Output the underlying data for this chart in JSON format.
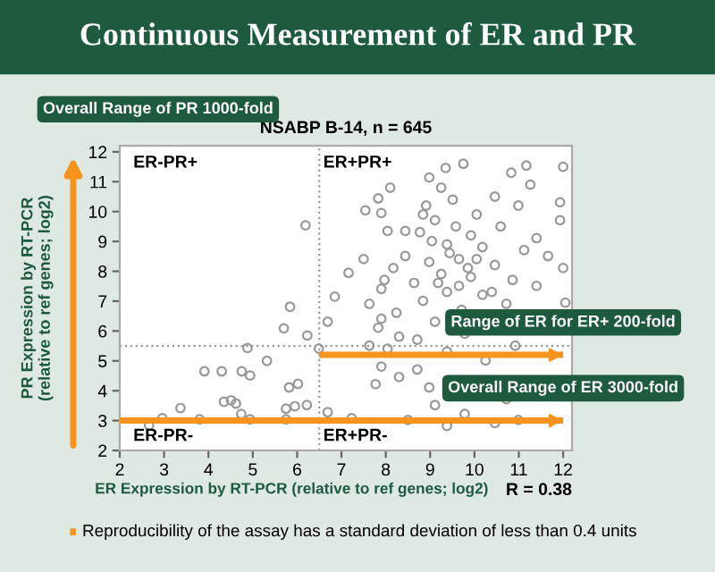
{
  "chart_data": {
    "type": "scatter",
    "title": "Continuous Measurement of ER and PR",
    "subtitle": "NSABP B-14, n = 645",
    "xlabel": "ER Expression by RT-PCR (relative to ref genes; log2)",
    "ylabel": "PR Expression by RT-PCR\n(relative to ref genes; log2)",
    "xlim": [
      2,
      12.2
    ],
    "ylim": [
      2,
      12.2
    ],
    "xticks": [
      2,
      3,
      4,
      5,
      6,
      7,
      8,
      9,
      10,
      11,
      12
    ],
    "yticks": [
      2,
      3,
      4,
      5,
      6,
      7,
      8,
      9,
      10,
      11,
      12
    ],
    "grid": false,
    "legend": false,
    "marker": "circle",
    "ref_lines": [
      {
        "axis": "x",
        "value": 6.5,
        "color": "#999999",
        "line_style": "dotted"
      },
      {
        "axis": "y",
        "value": 5.5,
        "color": "#999999",
        "line_style": "dotted"
      },
      {
        "axis": "y",
        "value": 5.2,
        "color": "#f7941d",
        "label": "Range of ER for ER+ 200-fold"
      },
      {
        "axis": "y",
        "value": 3,
        "color": "#f7941d",
        "label": "Overall Range of ER 3000-fold"
      }
    ],
    "annotations": [
      "Overall Range of PR 1000-fold",
      "ER-PR+",
      "ER+PR+",
      "ER-PR-",
      "ER+PR-",
      "R = 0.38",
      "Reproducibility of the assay has a standard deviation of less than 0.4 units"
    ],
    "series": [
      {
        "color": "#999999",
        "x": [
          6.19,
          5.84,
          5.7,
          6.23,
          4.88,
          5.32,
          3.91,
          4.3,
          4.75,
          4.94,
          5.82,
          6.02,
          4.51,
          4.35,
          4.62,
          3.37,
          4.74,
          5.75,
          5.95,
          6.22,
          2.96,
          2.66,
          3.8,
          4.94,
          5.75,
          6.49,
          6.69,
          6.85,
          8.1,
          7.83,
          7.54,
          7.9,
          8.04,
          8.44,
          7.16,
          7.5,
          7.97,
          7.63,
          7.9,
          8.3,
          7.9,
          7.77,
          8.3,
          7.23,
          6.69,
          7.63,
          8.04,
          9.35,
          9.75,
          11.17,
          12.0,
          8.98,
          10.83,
          11.26,
          9.25,
          10.46,
          9.51,
          8.91,
          11.93,
          10.99,
          10.05,
          11.93,
          9.11,
          9.58,
          10.59,
          8.77,
          9.92,
          11.4,
          9.38,
          10.18,
          11.12,
          11.66,
          8.44,
          8.98,
          9.65,
          10.46,
          12.0,
          8.17,
          9.25,
          9.92,
          10.86,
          8.64,
          11.4,
          7.9,
          9.38,
          10.18,
          8.84,
          12.05,
          10.72,
          9.71,
          8.24,
          9.11,
          7.83,
          9.78,
          8.71,
          10.92,
          9.38,
          10.25,
          8.71,
          8.98,
          10.72,
          9.11,
          9.78,
          8.5,
          9.38,
          10.46,
          10.99,
          9.04,
          9.44,
          9.85,
          9.18,
          9.65,
          10.05,
          8.84,
          10.39
        ],
        "values": [
          9.54,
          6.81,
          6.09,
          5.85,
          5.43,
          5.0,
          4.65,
          4.65,
          4.65,
          4.51,
          4.11,
          4.23,
          3.68,
          3.63,
          3.57,
          3.42,
          3.22,
          3.4,
          3.48,
          3.52,
          3.08,
          2.84,
          3.04,
          3.04,
          3.04,
          5.41,
          6.31,
          7.15,
          10.8,
          10.44,
          10.04,
          9.95,
          9.35,
          9.35,
          7.95,
          8.41,
          7.71,
          6.91,
          6.41,
          5.81,
          4.81,
          4.22,
          4.46,
          3.08,
          3.28,
          5.51,
          5.41,
          11.46,
          11.6,
          11.54,
          11.5,
          11.14,
          11.3,
          10.9,
          10.8,
          10.5,
          10.4,
          10.2,
          10.31,
          10.2,
          9.9,
          9.71,
          9.71,
          9.5,
          9.5,
          9.31,
          9.2,
          9.11,
          8.9,
          8.81,
          8.71,
          8.51,
          8.51,
          8.31,
          8.41,
          8.21,
          8.11,
          8.11,
          7.91,
          7.81,
          7.71,
          7.61,
          7.51,
          7.41,
          7.31,
          7.21,
          7.01,
          6.95,
          6.91,
          6.71,
          6.61,
          6.31,
          6.11,
          5.91,
          5.71,
          5.51,
          5.31,
          5.01,
          4.71,
          4.11,
          3.72,
          3.52,
          3.22,
          3.02,
          2.82,
          2.92,
          3.02,
          9.01,
          8.61,
          8.11,
          7.61,
          7.51,
          8.41,
          9.9,
          7.31
        ]
      }
    ]
  }
}
